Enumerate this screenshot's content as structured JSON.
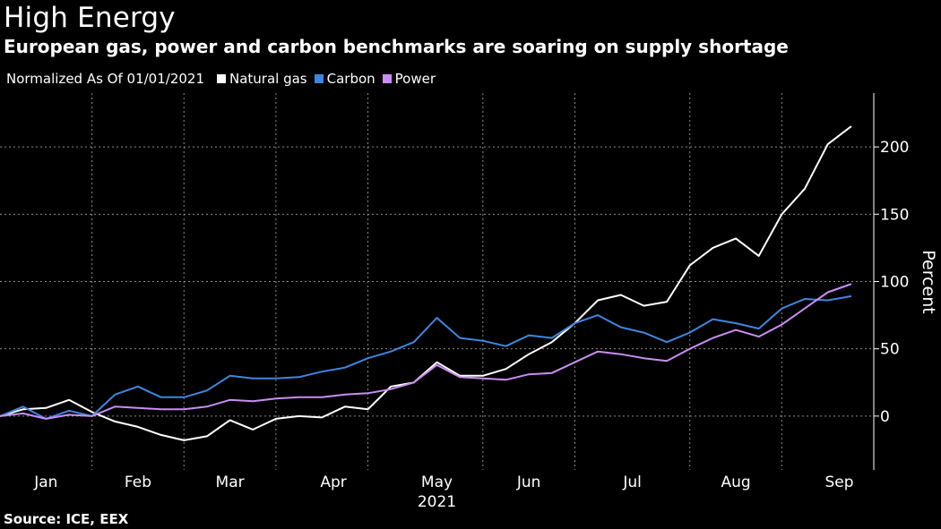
{
  "title": "High Energy",
  "subtitle": "European gas, power and carbon benchmarks are soaring on supply shortage",
  "legend_note": "Normalized As Of 01/01/2021",
  "source": "Source: ICE, EEX",
  "chart_data": {
    "type": "line",
    "ylabel": "Percent",
    "ylim": [
      -40,
      240
    ],
    "yticks": [
      0,
      50,
      100,
      150,
      200
    ],
    "y_axis_position": "right",
    "grid": "dotted",
    "legend_position": "top-left",
    "x_range": [
      0,
      38
    ],
    "x_unit": "weeks since 01/01/2021",
    "month_ticks": [
      {
        "label": "Jan",
        "x": 2
      },
      {
        "label": "Feb",
        "x": 6
      },
      {
        "label": "Mar",
        "x": 10
      },
      {
        "label": "Apr",
        "x": 14.5
      },
      {
        "label": "May",
        "x": 19
      },
      {
        "label": "Jun",
        "x": 23
      },
      {
        "label": "Jul",
        "x": 27.5
      },
      {
        "label": "Aug",
        "x": 32
      },
      {
        "label": "Sep",
        "x": 36.5
      }
    ],
    "gridlines_x": [
      4,
      8,
      12,
      16,
      21,
      25,
      30,
      34
    ],
    "year_label": "2021",
    "series": [
      {
        "name": "Natural gas",
        "color": "#ffffff",
        "x": [
          0,
          1,
          2,
          3,
          4,
          5,
          6,
          7,
          8,
          9,
          10,
          11,
          12,
          13,
          14,
          15,
          16,
          17,
          18,
          19,
          20,
          21,
          22,
          23,
          24,
          25,
          26,
          27,
          28,
          29,
          30,
          31,
          32,
          33,
          34,
          35,
          36,
          37
        ],
        "values": [
          0,
          5,
          6,
          12,
          3,
          -4,
          -8,
          -14,
          -18,
          -15,
          -3,
          -10,
          -2,
          0,
          -1,
          7,
          5,
          22,
          25,
          40,
          30,
          30,
          35,
          46,
          55,
          69,
          86,
          90,
          82,
          85,
          112,
          125,
          132,
          119,
          150,
          169,
          202,
          215
        ]
      },
      {
        "name": "Carbon",
        "color": "#3f86e0",
        "x": [
          0,
          1,
          2,
          3,
          4,
          5,
          6,
          7,
          8,
          9,
          10,
          11,
          12,
          13,
          14,
          15,
          16,
          17,
          18,
          19,
          20,
          21,
          22,
          23,
          24,
          25,
          26,
          27,
          28,
          29,
          30,
          31,
          32,
          33,
          34,
          35,
          36,
          37
        ],
        "values": [
          0,
          7,
          -2,
          4,
          0,
          16,
          22,
          14,
          14,
          19,
          30,
          28,
          28,
          29,
          33,
          36,
          43,
          48,
          55,
          73,
          58,
          56,
          52,
          60,
          58,
          69,
          75,
          66,
          62,
          55,
          62,
          72,
          69,
          65,
          80,
          87,
          86,
          89
        ]
      },
      {
        "name": "Power",
        "color": "#c98ef5",
        "x": [
          0,
          1,
          2,
          3,
          4,
          5,
          6,
          7,
          8,
          9,
          10,
          11,
          12,
          13,
          14,
          15,
          16,
          17,
          18,
          19,
          20,
          21,
          22,
          23,
          24,
          25,
          26,
          27,
          28,
          29,
          30,
          31,
          32,
          33,
          34,
          35,
          36,
          37
        ],
        "values": [
          0,
          2,
          -2,
          1,
          0,
          7,
          6,
          5,
          5,
          7,
          12,
          11,
          13,
          14,
          14,
          16,
          17,
          20,
          25,
          38,
          29,
          28,
          27,
          31,
          32,
          40,
          48,
          46,
          43,
          41,
          50,
          58,
          64,
          59,
          68,
          80,
          92,
          98
        ]
      }
    ]
  }
}
